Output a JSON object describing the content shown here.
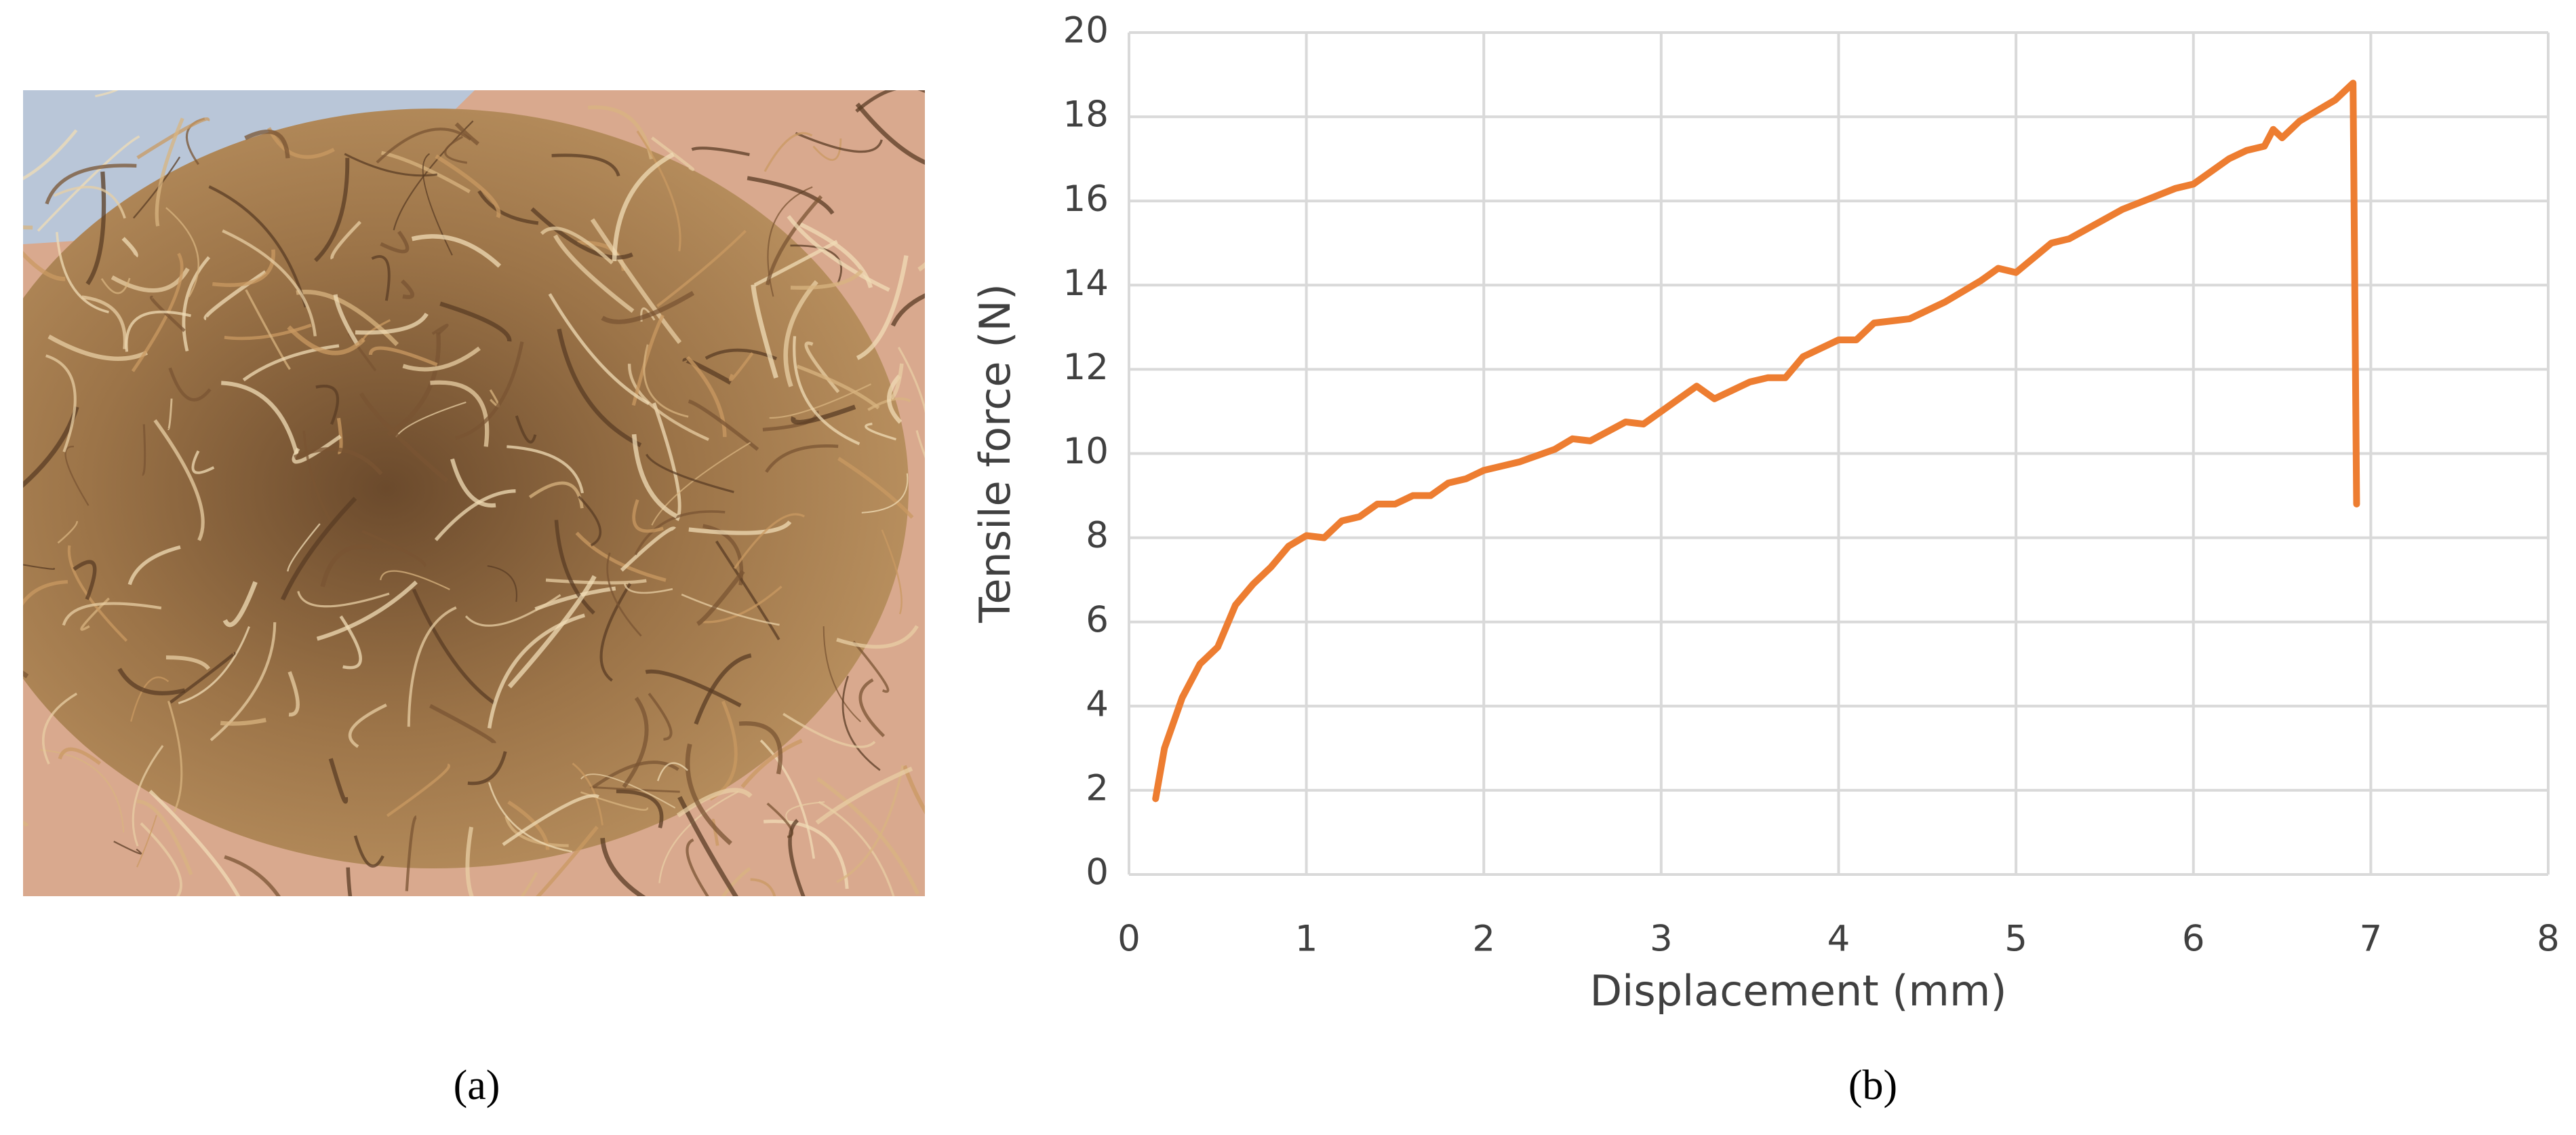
{
  "chart_data": {
    "type": "line",
    "x_label": "Displacement (mm)",
    "y_label": "Tensile force (N)",
    "x": [
      0.15,
      0.2,
      0.3,
      0.4,
      0.5,
      0.6,
      0.7,
      0.8,
      0.9,
      1.0,
      1.1,
      1.2,
      1.3,
      1.4,
      1.5,
      1.6,
      1.7,
      1.8,
      1.9,
      2.0,
      2.2,
      2.4,
      2.5,
      2.6,
      2.8,
      2.9,
      3.0,
      3.2,
      3.3,
      3.5,
      3.6,
      3.7,
      3.8,
      4.0,
      4.1,
      4.2,
      4.4,
      4.6,
      4.8,
      4.9,
      5.0,
      5.2,
      5.3,
      5.6,
      5.9,
      6.0,
      6.2,
      6.3,
      6.4,
      6.45,
      6.5,
      6.6,
      6.8,
      6.9,
      6.92
    ],
    "y": [
      1.8,
      3.0,
      4.2,
      5.0,
      5.4,
      6.4,
      6.9,
      7.3,
      7.8,
      8.05,
      8.0,
      8.4,
      8.5,
      8.8,
      8.8,
      9.0,
      9.0,
      9.3,
      9.4,
      9.6,
      9.8,
      10.1,
      10.35,
      10.3,
      10.75,
      10.7,
      11.0,
      11.6,
      11.3,
      11.7,
      11.8,
      11.8,
      12.3,
      12.7,
      12.7,
      13.1,
      13.2,
      13.6,
      14.1,
      14.4,
      14.3,
      15.0,
      15.1,
      15.8,
      16.3,
      16.4,
      17.0,
      17.2,
      17.3,
      17.7,
      17.5,
      17.9,
      18.4,
      18.8,
      8.8
    ],
    "color": "#ed7d31",
    "xlim": [
      0,
      8
    ],
    "xticks": [
      0,
      1,
      2,
      3,
      4,
      5,
      6,
      7,
      8
    ],
    "ylim": [
      0,
      20
    ],
    "yticks": [
      0,
      2,
      4,
      6,
      8,
      10,
      12,
      14,
      16,
      18,
      20
    ],
    "grid": true
  },
  "panel_labels": [
    "(a)",
    "(b)"
  ]
}
